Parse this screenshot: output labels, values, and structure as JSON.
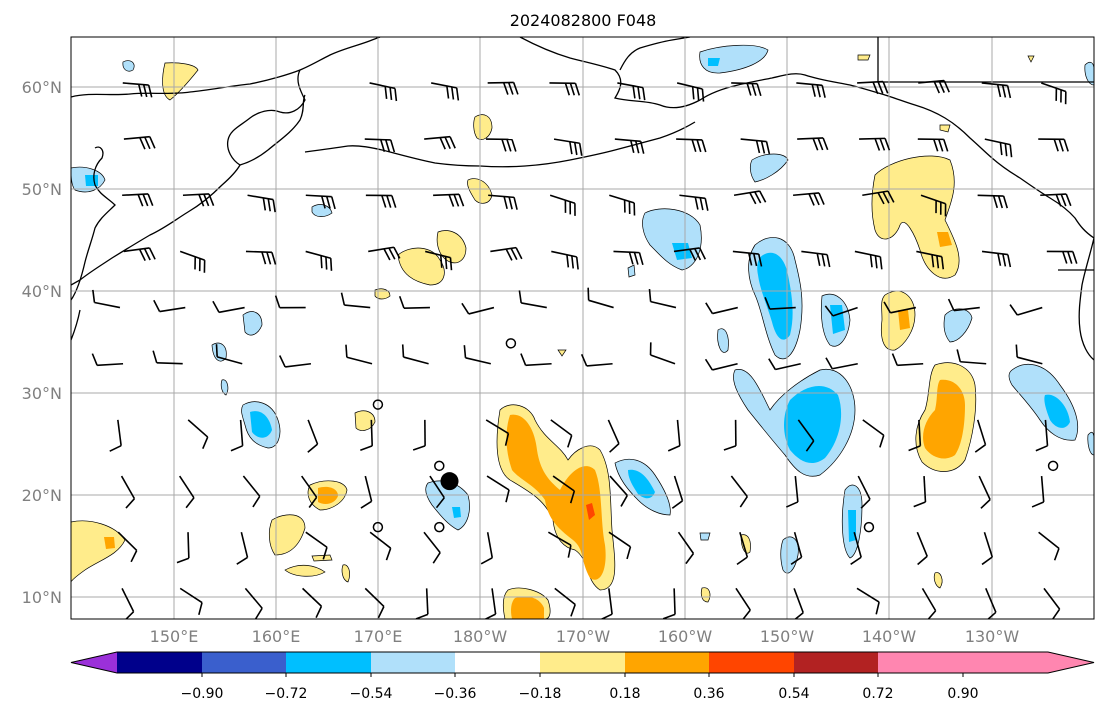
{
  "title": "2024082800 F048",
  "latitude_labels": [
    "60°N",
    "50°N",
    "40°N",
    "30°N",
    "20°N",
    "10°N"
  ],
  "longitude_labels": [
    "150°E",
    "160°E",
    "170°E",
    "180°W",
    "170°W",
    "160°W",
    "150°W",
    "140°W",
    "130°W"
  ],
  "colorbar": {
    "ticks": [
      "−0.90",
      "−0.72",
      "−0.54",
      "−0.36",
      "−0.18",
      "0.18",
      "0.36",
      "0.54",
      "0.72",
      "0.90"
    ],
    "colors": [
      "#9b30d9",
      "#00008b",
      "#3a5fcd",
      "#00bfff",
      "#b0e0fa",
      "#ffffff",
      "#ffec8b",
      "#ffa500",
      "#ff4500",
      "#b22222",
      "#ff86b0"
    ]
  },
  "colors": {
    "grid": "#a9a9a9",
    "coast": "#000000",
    "positive_light": "#ffec8b",
    "positive_mid": "#ffa500",
    "positive_strong": "#ff4500",
    "negative_light": "#b0e0fa",
    "negative_mid": "#00bfff"
  },
  "map": {
    "lon_min": 140,
    "lon_max": 240,
    "lat_min": 8,
    "lat_max": 65,
    "projection": "PlateCarree",
    "grid": true
  },
  "markers": [
    {
      "kind": "filled_dot",
      "lon": 177,
      "lat": 21.5
    },
    {
      "kind": "open_circle",
      "lon": 183,
      "lat": 35
    },
    {
      "kind": "open_circle",
      "lon": 170,
      "lat": 29
    },
    {
      "kind": "open_circle",
      "lon": 176,
      "lat": 23
    },
    {
      "kind": "open_circle",
      "lon": 170,
      "lat": 17
    },
    {
      "kind": "open_circle",
      "lon": 176,
      "lat": 17
    },
    {
      "kind": "open_circle",
      "lon": 218,
      "lat": 17
    },
    {
      "kind": "open_circle",
      "lon": 236,
      "lat": 23
    }
  ]
}
